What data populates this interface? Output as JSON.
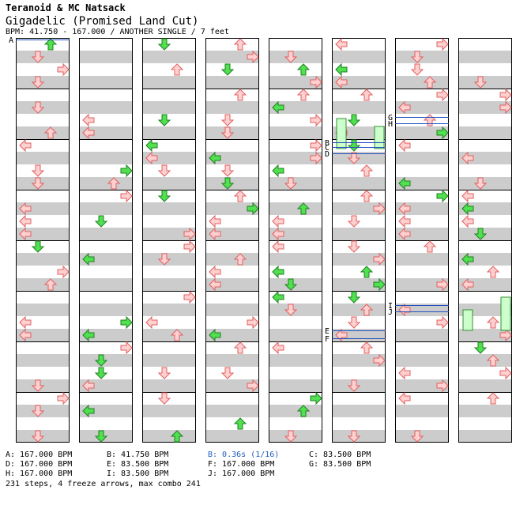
{
  "header": {
    "artist": "Teranoid & MC Natsack",
    "title": "Gigadelic (Promised Land Cut)",
    "bpm_line": "BPM: 41.750 - 167.000 / ANOTHER SINGLE / 7 feet"
  },
  "colors": {
    "stripe": "#cccccc",
    "column_border": "#000000",
    "arrow_red_fill": "#ffd0d0",
    "arrow_red_stroke": "#e06060",
    "arrow_green_fill": "#50e050",
    "arrow_green_stroke": "#208020",
    "freeze_fill": "#ccffcc",
    "freeze_stroke": "#309030",
    "marker_line": "#2050c0",
    "stop_text": "#2060c0"
  },
  "chart": {
    "columns": 8,
    "markers": [
      "A",
      "B",
      "C",
      "D",
      "E",
      "F",
      "G",
      "H",
      "I",
      "J"
    ]
  },
  "legend": [
    {
      "text": "A: 167.000 BPM",
      "kind": "bpm"
    },
    {
      "text": "B: 41.750 BPM",
      "kind": "bpm"
    },
    {
      "text": "B: 0.36s (1/16)",
      "kind": "stop"
    },
    {
      "text": "C: 83.500 BPM",
      "kind": "bpm"
    },
    {
      "text": "D: 167.000 BPM",
      "kind": "bpm"
    },
    {
      "text": "E: 83.500 BPM",
      "kind": "bpm"
    },
    {
      "text": "F: 167.000 BPM",
      "kind": "bpm"
    },
    {
      "text": "G: 83.500 BPM",
      "kind": "bpm"
    },
    {
      "text": "H: 167.000 BPM",
      "kind": "bpm"
    },
    {
      "text": "I: 83.500 BPM",
      "kind": "bpm"
    },
    {
      "text": "J: 167.000 BPM",
      "kind": "bpm"
    }
  ],
  "summary": "231 steps, 4 freeze arrows, max combo 241"
}
